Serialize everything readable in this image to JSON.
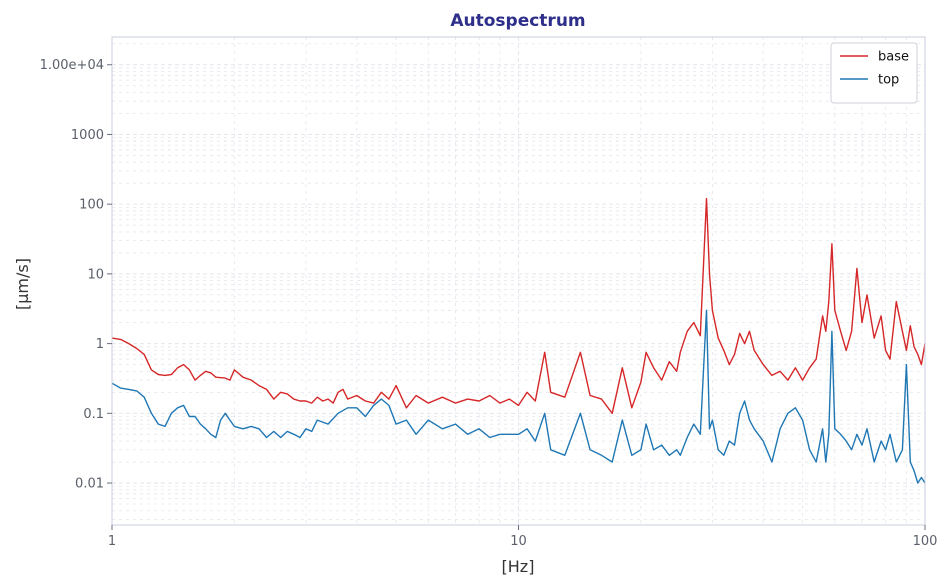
{
  "chart_data": {
    "type": "line",
    "title": "Autospectrum",
    "xlabel": "[Hz]",
    "ylabel": "[µm/s]",
    "xscale": "log",
    "yscale": "log",
    "xlim": [
      1,
      100
    ],
    "ylim": [
      0.0025,
      25000
    ],
    "xticks": [
      {
        "value": 1,
        "label": "1"
      },
      {
        "value": 10,
        "label": "10"
      },
      {
        "value": 100,
        "label": "100"
      }
    ],
    "yticks": [
      {
        "value": 0.01,
        "label": "0.01"
      },
      {
        "value": 0.1,
        "label": "0.1"
      },
      {
        "value": 1,
        "label": "1"
      },
      {
        "value": 10,
        "label": "10"
      },
      {
        "value": 100,
        "label": "100"
      },
      {
        "value": 1000,
        "label": "1000"
      },
      {
        "value": 10000,
        "label": "1.00e+04"
      }
    ],
    "grid": true,
    "legend_position": "top-right",
    "colors": {
      "title": "#2e2f8a",
      "axes": "#c9cde0",
      "grid": "#e3e6ee"
    },
    "series": [
      {
        "name": "base",
        "color": "#d62728",
        "points": [
          [
            1.0,
            1.2
          ],
          [
            1.05,
            1.15
          ],
          [
            1.1,
            1.0
          ],
          [
            1.15,
            0.85
          ],
          [
            1.2,
            0.7
          ],
          [
            1.25,
            0.42
          ],
          [
            1.3,
            0.36
          ],
          [
            1.35,
            0.35
          ],
          [
            1.4,
            0.36
          ],
          [
            1.45,
            0.45
          ],
          [
            1.5,
            0.5
          ],
          [
            1.55,
            0.42
          ],
          [
            1.6,
            0.3
          ],
          [
            1.65,
            0.35
          ],
          [
            1.7,
            0.4
          ],
          [
            1.75,
            0.38
          ],
          [
            1.8,
            0.33
          ],
          [
            1.9,
            0.32
          ],
          [
            1.95,
            0.3
          ],
          [
            2.0,
            0.42
          ],
          [
            2.1,
            0.33
          ],
          [
            2.2,
            0.3
          ],
          [
            2.3,
            0.25
          ],
          [
            2.4,
            0.22
          ],
          [
            2.5,
            0.16
          ],
          [
            2.6,
            0.2
          ],
          [
            2.7,
            0.19
          ],
          [
            2.8,
            0.16
          ],
          [
            2.9,
            0.15
          ],
          [
            3.0,
            0.15
          ],
          [
            3.1,
            0.14
          ],
          [
            3.2,
            0.17
          ],
          [
            3.3,
            0.15
          ],
          [
            3.4,
            0.16
          ],
          [
            3.5,
            0.14
          ],
          [
            3.6,
            0.2
          ],
          [
            3.7,
            0.22
          ],
          [
            3.8,
            0.16
          ],
          [
            4.0,
            0.18
          ],
          [
            4.2,
            0.15
          ],
          [
            4.4,
            0.14
          ],
          [
            4.6,
            0.2
          ],
          [
            4.8,
            0.16
          ],
          [
            5.0,
            0.25
          ],
          [
            5.3,
            0.12
          ],
          [
            5.6,
            0.18
          ],
          [
            6.0,
            0.14
          ],
          [
            6.5,
            0.17
          ],
          [
            7.0,
            0.14
          ],
          [
            7.5,
            0.16
          ],
          [
            8.0,
            0.15
          ],
          [
            8.5,
            0.18
          ],
          [
            9.0,
            0.14
          ],
          [
            9.5,
            0.16
          ],
          [
            10.0,
            0.13
          ],
          [
            10.5,
            0.2
          ],
          [
            11.0,
            0.15
          ],
          [
            11.6,
            0.75
          ],
          [
            12.0,
            0.2
          ],
          [
            13.0,
            0.17
          ],
          [
            14.2,
            0.75
          ],
          [
            15.0,
            0.18
          ],
          [
            16.0,
            0.16
          ],
          [
            17.0,
            0.1
          ],
          [
            18.0,
            0.45
          ],
          [
            19.0,
            0.12
          ],
          [
            20.0,
            0.28
          ],
          [
            20.6,
            0.75
          ],
          [
            21.5,
            0.45
          ],
          [
            22.5,
            0.3
          ],
          [
            23.5,
            0.55
          ],
          [
            24.5,
            0.4
          ],
          [
            25.0,
            0.75
          ],
          [
            26.0,
            1.5
          ],
          [
            27.0,
            2.0
          ],
          [
            28.0,
            1.3
          ],
          [
            29.0,
            120
          ],
          [
            29.5,
            10
          ],
          [
            30.0,
            3.0
          ],
          [
            31.0,
            1.2
          ],
          [
            32.0,
            0.8
          ],
          [
            33.0,
            0.5
          ],
          [
            34.0,
            0.7
          ],
          [
            35.0,
            1.4
          ],
          [
            36.0,
            1.0
          ],
          [
            37.0,
            1.5
          ],
          [
            38.0,
            0.8
          ],
          [
            40.0,
            0.5
          ],
          [
            42.0,
            0.35
          ],
          [
            44.0,
            0.4
          ],
          [
            46.0,
            0.3
          ],
          [
            48.0,
            0.45
          ],
          [
            50.0,
            0.3
          ],
          [
            52.0,
            0.45
          ],
          [
            54.0,
            0.6
          ],
          [
            56.0,
            2.5
          ],
          [
            57.0,
            1.5
          ],
          [
            58.0,
            4.0
          ],
          [
            59.0,
            27
          ],
          [
            60.0,
            3.0
          ],
          [
            62.0,
            1.5
          ],
          [
            64.0,
            0.8
          ],
          [
            66.0,
            1.5
          ],
          [
            68.0,
            12
          ],
          [
            70.0,
            2.0
          ],
          [
            72.0,
            5.0
          ],
          [
            75.0,
            1.2
          ],
          [
            78.0,
            2.5
          ],
          [
            80.0,
            0.8
          ],
          [
            82.0,
            0.6
          ],
          [
            85.0,
            4.0
          ],
          [
            88.0,
            1.5
          ],
          [
            90.0,
            0.8
          ],
          [
            92.0,
            1.8
          ],
          [
            94.0,
            0.9
          ],
          [
            96.0,
            0.7
          ],
          [
            98.0,
            0.5
          ],
          [
            100.0,
            1.0
          ]
        ]
      },
      {
        "name": "top",
        "color": "#1f77b4",
        "points": [
          [
            1.0,
            0.27
          ],
          [
            1.05,
            0.23
          ],
          [
            1.1,
            0.22
          ],
          [
            1.15,
            0.21
          ],
          [
            1.2,
            0.17
          ],
          [
            1.25,
            0.1
          ],
          [
            1.3,
            0.07
          ],
          [
            1.35,
            0.065
          ],
          [
            1.4,
            0.1
          ],
          [
            1.45,
            0.12
          ],
          [
            1.5,
            0.13
          ],
          [
            1.55,
            0.09
          ],
          [
            1.6,
            0.09
          ],
          [
            1.65,
            0.07
          ],
          [
            1.7,
            0.06
          ],
          [
            1.75,
            0.05
          ],
          [
            1.8,
            0.045
          ],
          [
            1.85,
            0.08
          ],
          [
            1.9,
            0.1
          ],
          [
            1.95,
            0.08
          ],
          [
            2.0,
            0.065
          ],
          [
            2.1,
            0.06
          ],
          [
            2.2,
            0.065
          ],
          [
            2.3,
            0.06
          ],
          [
            2.4,
            0.045
          ],
          [
            2.5,
            0.055
          ],
          [
            2.6,
            0.045
          ],
          [
            2.7,
            0.055
          ],
          [
            2.8,
            0.05
          ],
          [
            2.9,
            0.045
          ],
          [
            3.0,
            0.06
          ],
          [
            3.1,
            0.055
          ],
          [
            3.2,
            0.08
          ],
          [
            3.4,
            0.07
          ],
          [
            3.6,
            0.1
          ],
          [
            3.8,
            0.12
          ],
          [
            4.0,
            0.12
          ],
          [
            4.2,
            0.09
          ],
          [
            4.4,
            0.13
          ],
          [
            4.6,
            0.16
          ],
          [
            4.8,
            0.13
          ],
          [
            5.0,
            0.07
          ],
          [
            5.3,
            0.08
          ],
          [
            5.6,
            0.05
          ],
          [
            6.0,
            0.08
          ],
          [
            6.5,
            0.06
          ],
          [
            7.0,
            0.07
          ],
          [
            7.5,
            0.05
          ],
          [
            8.0,
            0.06
          ],
          [
            8.5,
            0.045
          ],
          [
            9.0,
            0.05
          ],
          [
            9.5,
            0.05
          ],
          [
            10.0,
            0.05
          ],
          [
            10.5,
            0.06
          ],
          [
            11.0,
            0.04
          ],
          [
            11.6,
            0.1
          ],
          [
            12.0,
            0.03
          ],
          [
            13.0,
            0.025
          ],
          [
            14.2,
            0.1
          ],
          [
            15.0,
            0.03
          ],
          [
            16.0,
            0.025
          ],
          [
            17.0,
            0.02
          ],
          [
            18.0,
            0.08
          ],
          [
            19.0,
            0.025
          ],
          [
            20.0,
            0.03
          ],
          [
            20.6,
            0.07
          ],
          [
            21.5,
            0.03
          ],
          [
            22.5,
            0.035
          ],
          [
            23.5,
            0.025
          ],
          [
            24.5,
            0.03
          ],
          [
            25.0,
            0.025
          ],
          [
            26.0,
            0.045
          ],
          [
            27.0,
            0.07
          ],
          [
            28.0,
            0.05
          ],
          [
            29.0,
            3.0
          ],
          [
            29.5,
            0.06
          ],
          [
            30.0,
            0.08
          ],
          [
            31.0,
            0.03
          ],
          [
            32.0,
            0.025
          ],
          [
            33.0,
            0.04
          ],
          [
            34.0,
            0.035
          ],
          [
            35.0,
            0.1
          ],
          [
            36.0,
            0.15
          ],
          [
            37.0,
            0.08
          ],
          [
            38.0,
            0.06
          ],
          [
            40.0,
            0.04
          ],
          [
            42.0,
            0.02
          ],
          [
            44.0,
            0.06
          ],
          [
            46.0,
            0.1
          ],
          [
            48.0,
            0.12
          ],
          [
            50.0,
            0.08
          ],
          [
            52.0,
            0.03
          ],
          [
            54.0,
            0.02
          ],
          [
            56.0,
            0.06
          ],
          [
            57.0,
            0.02
          ],
          [
            58.0,
            0.05
          ],
          [
            59.0,
            1.5
          ],
          [
            60.0,
            0.06
          ],
          [
            62.0,
            0.05
          ],
          [
            64.0,
            0.04
          ],
          [
            66.0,
            0.03
          ],
          [
            68.0,
            0.05
          ],
          [
            70.0,
            0.035
          ],
          [
            72.0,
            0.06
          ],
          [
            75.0,
            0.02
          ],
          [
            78.0,
            0.04
          ],
          [
            80.0,
            0.03
          ],
          [
            82.0,
            0.05
          ],
          [
            85.0,
            0.02
          ],
          [
            88.0,
            0.03
          ],
          [
            90.0,
            0.5
          ],
          [
            92.0,
            0.02
          ],
          [
            94.0,
            0.015
          ],
          [
            96.0,
            0.01
          ],
          [
            98.0,
            0.012
          ],
          [
            100.0,
            0.01
          ]
        ]
      }
    ]
  }
}
